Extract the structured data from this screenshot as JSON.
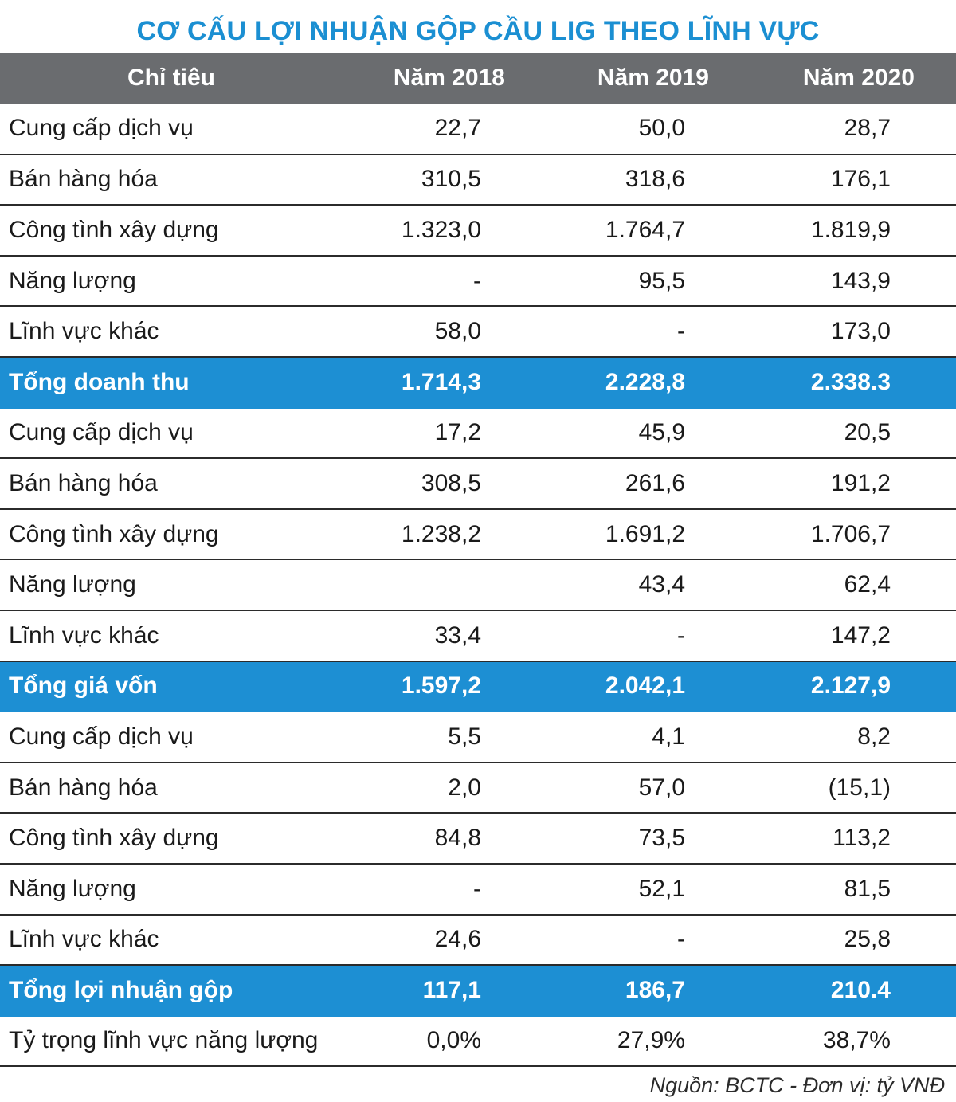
{
  "title": "CƠ CẤU LỢI NHUẬN GỘP CẦU LIG THEO LĨNH VỰC",
  "headers": [
    "Chỉ tiêu",
    "Năm 2018",
    "Năm 2019",
    "Năm 2020"
  ],
  "rows": [
    {
      "label": "Cung cấp dịch vụ",
      "values": [
        "22,7",
        "50,0",
        "28,7"
      ]
    },
    {
      "label": "Bán hàng hóa",
      "values": [
        "310,5",
        "318,6",
        "176,1"
      ]
    },
    {
      "label": "Công tình xây dựng",
      "values": [
        "1.323,0",
        "1.764,7",
        "1.819,9"
      ]
    },
    {
      "label": "Năng lượng",
      "values": [
        "-",
        "95,5",
        "143,9"
      ]
    },
    {
      "label": "Lĩnh vực khác",
      "values": [
        "58,0",
        "-",
        "173,0"
      ]
    },
    {
      "label": "Tổng doanh thu",
      "values": [
        "1.714,3",
        "2.228,8",
        "2.338.3"
      ],
      "total": true
    },
    {
      "label": "Cung cấp dịch vụ",
      "values": [
        "17,2",
        "45,9",
        "20,5"
      ]
    },
    {
      "label": "Bán hàng hóa",
      "values": [
        "308,5",
        "261,6",
        "191,2"
      ]
    },
    {
      "label": "Công tình xây dựng",
      "values": [
        "1.238,2",
        "1.691,2",
        "1.706,7"
      ]
    },
    {
      "label": "Năng lượng",
      "values": [
        "",
        "43,4",
        "62,4"
      ]
    },
    {
      "label": "Lĩnh vực khác",
      "values": [
        "33,4",
        "-",
        "147,2"
      ]
    },
    {
      "label": "Tổng giá vốn",
      "values": [
        "1.597,2",
        "2.042,1",
        "2.127,9"
      ],
      "total": true
    },
    {
      "label": "Cung cấp dịch vụ",
      "values": [
        "5,5",
        "4,1",
        "8,2"
      ]
    },
    {
      "label": "Bán hàng hóa",
      "values": [
        "2,0",
        "57,0",
        "(15,1)"
      ]
    },
    {
      "label": "Công tình xây dựng",
      "values": [
        "84,8",
        "73,5",
        "113,2"
      ]
    },
    {
      "label": "Năng lượng",
      "values": [
        "-",
        "52,1",
        "81,5"
      ]
    },
    {
      "label": "Lĩnh vực khác",
      "values": [
        "24,6",
        "-",
        "25,8"
      ]
    },
    {
      "label": "Tổng lợi nhuận gộp",
      "values": [
        "117,1",
        "186,7",
        "210.4"
      ],
      "total": true
    },
    {
      "label": "Tỷ trọng lĩnh vực năng lượng",
      "values": [
        "0,0%",
        "27,9%",
        "38,7%"
      ]
    }
  ],
  "source": "Nguồn: BCTC - Đơn vị: tỷ VNĐ",
  "colors": {
    "title": "#1b8fd2",
    "header_bg": "#6a6c6f",
    "total_bg": "#1d8fd3"
  }
}
